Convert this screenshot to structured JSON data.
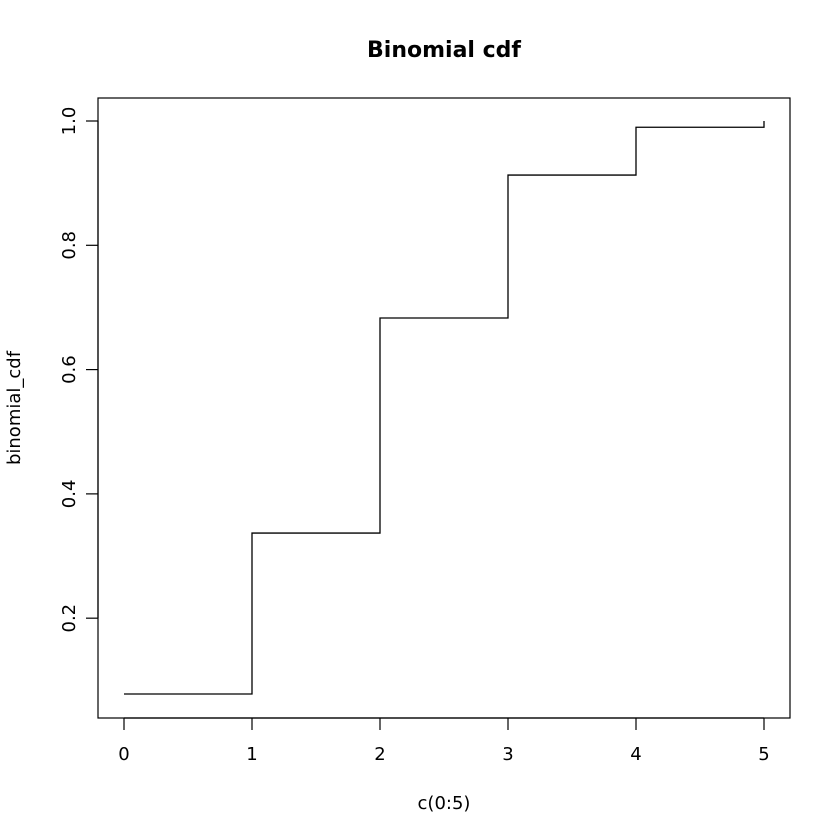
{
  "chart_data": {
    "type": "line",
    "line_style": "step",
    "title": "Binomial cdf",
    "xlabel": "c(0:5)",
    "ylabel": "binomial_cdf",
    "x": [
      0,
      1,
      2,
      3,
      4,
      5
    ],
    "y": [
      0.078,
      0.337,
      0.683,
      0.913,
      0.99,
      1.0
    ],
    "xlim": [
      0,
      5
    ],
    "ylim": [
      0.078,
      1.0
    ],
    "x_ticks": [
      "0",
      "1",
      "2",
      "3",
      "4",
      "5"
    ],
    "y_ticks": [
      "0.2",
      "0.4",
      "0.6",
      "0.8",
      "1.0"
    ],
    "grid": false,
    "line_color": "#000000"
  }
}
